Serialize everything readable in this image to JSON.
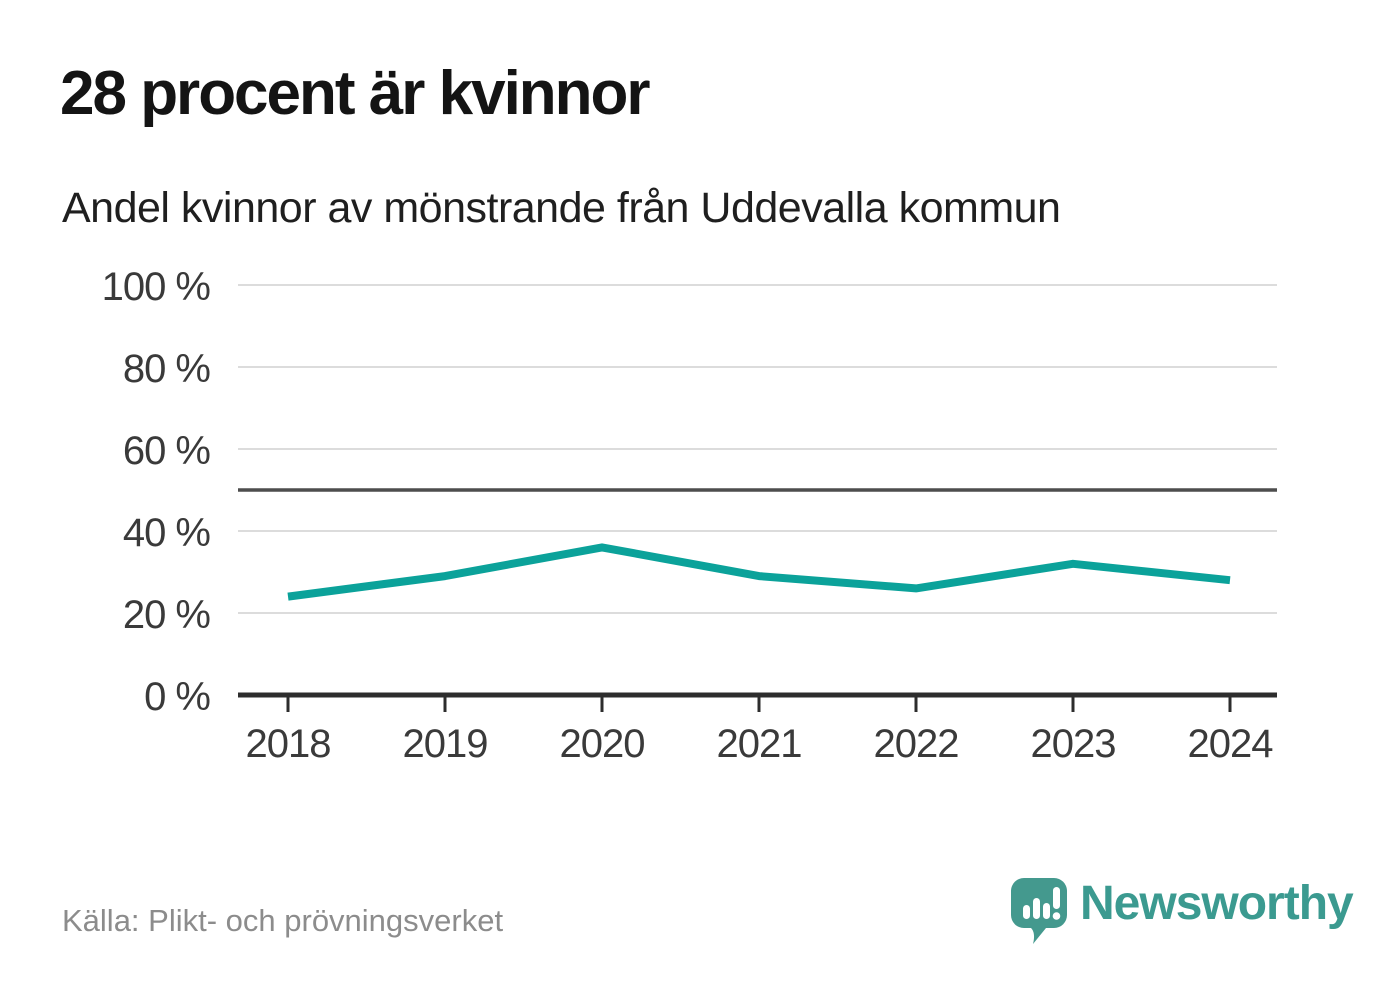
{
  "header": {
    "title": "28 procent är kvinnor",
    "subtitle": "Andel kvinnor av mönstrande från Uddevalla kommun"
  },
  "footer": {
    "source": "Källa: Plikt- och prövningsverket",
    "brand": "Newsworthy",
    "brand_icon": "speech-bubble-bar-chart-icon"
  },
  "colors": {
    "accent_line": "#0ba29a",
    "reference_line": "#4d4d4d",
    "grid": "#dcdcdc",
    "axis": "#2d2d2d",
    "tick_text": "#3a3a3a",
    "title_text": "#141414",
    "source_text": "#8c8c8c",
    "brand": "#3b9a90"
  },
  "chart_data": {
    "type": "line",
    "title": "28 procent är kvinnor",
    "subtitle": "Andel kvinnor av mönstrande från Uddevalla kommun",
    "x": [
      2018,
      2019,
      2020,
      2021,
      2022,
      2023,
      2024
    ],
    "series": [
      {
        "name": "Andel kvinnor av mönstrande",
        "color": "#0ba29a",
        "values": [
          24,
          29,
          36,
          29,
          26,
          32,
          28
        ]
      }
    ],
    "unit": "%",
    "ylim": [
      0,
      100
    ],
    "yticks": [
      0,
      20,
      40,
      60,
      80,
      100
    ],
    "ytick_suffix": " %",
    "reference_line": 50,
    "grid": true,
    "legend": false,
    "source": "Källa: Plikt- och prövningsverket"
  }
}
